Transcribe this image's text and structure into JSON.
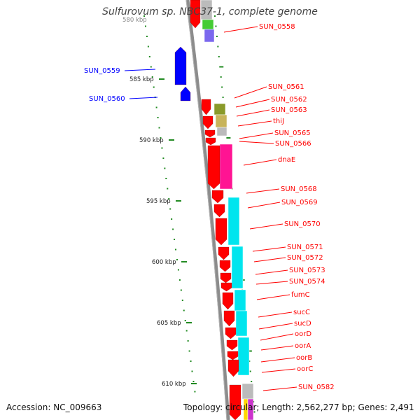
{
  "title": "Sulfurovum sp. NBC37-1, complete genome",
  "accession_text": "Accession: NC_009663",
  "topology_text": "Topology: circular; Length: 2,562,277 bp; Genes: 2,491",
  "scale_labels": [
    "585 kbp",
    "590 kbp",
    "595 kbp",
    "600 kbp",
    "605 kbp",
    "610 kbp"
  ],
  "colors": {
    "forward_gene": "#ff0000",
    "reverse_gene": "#0000ff",
    "backbone": "#888888",
    "tick": "#228b22",
    "cog_cyan": "#00e5ee",
    "cog_magenta": "#ff1493",
    "cog_green": "#44cc33",
    "cog_olive": "#8a9a2a",
    "cog_khaki": "#c8b45a",
    "cog_gray": "#bbbbbb",
    "cog_purple": "#7b68ee"
  },
  "reverse_labels": [
    "SUN_0559",
    "SUN_0560"
  ],
  "forward_labels": [
    "SUN_0558",
    "SUN_0561",
    "SUN_0562",
    "SUN_0563",
    "thiJ",
    "SUN_0565",
    "SUN_0566",
    "dnaE",
    "SUN_0568",
    "SUN_0569",
    "SUN_0570",
    "SUN_0571",
    "SUN_0572",
    "SUN_0573",
    "SUN_0574",
    "fumC",
    "sucC",
    "sucD",
    "oorD",
    "oorA",
    "oorB",
    "oorC",
    "SUN_0582"
  ]
}
